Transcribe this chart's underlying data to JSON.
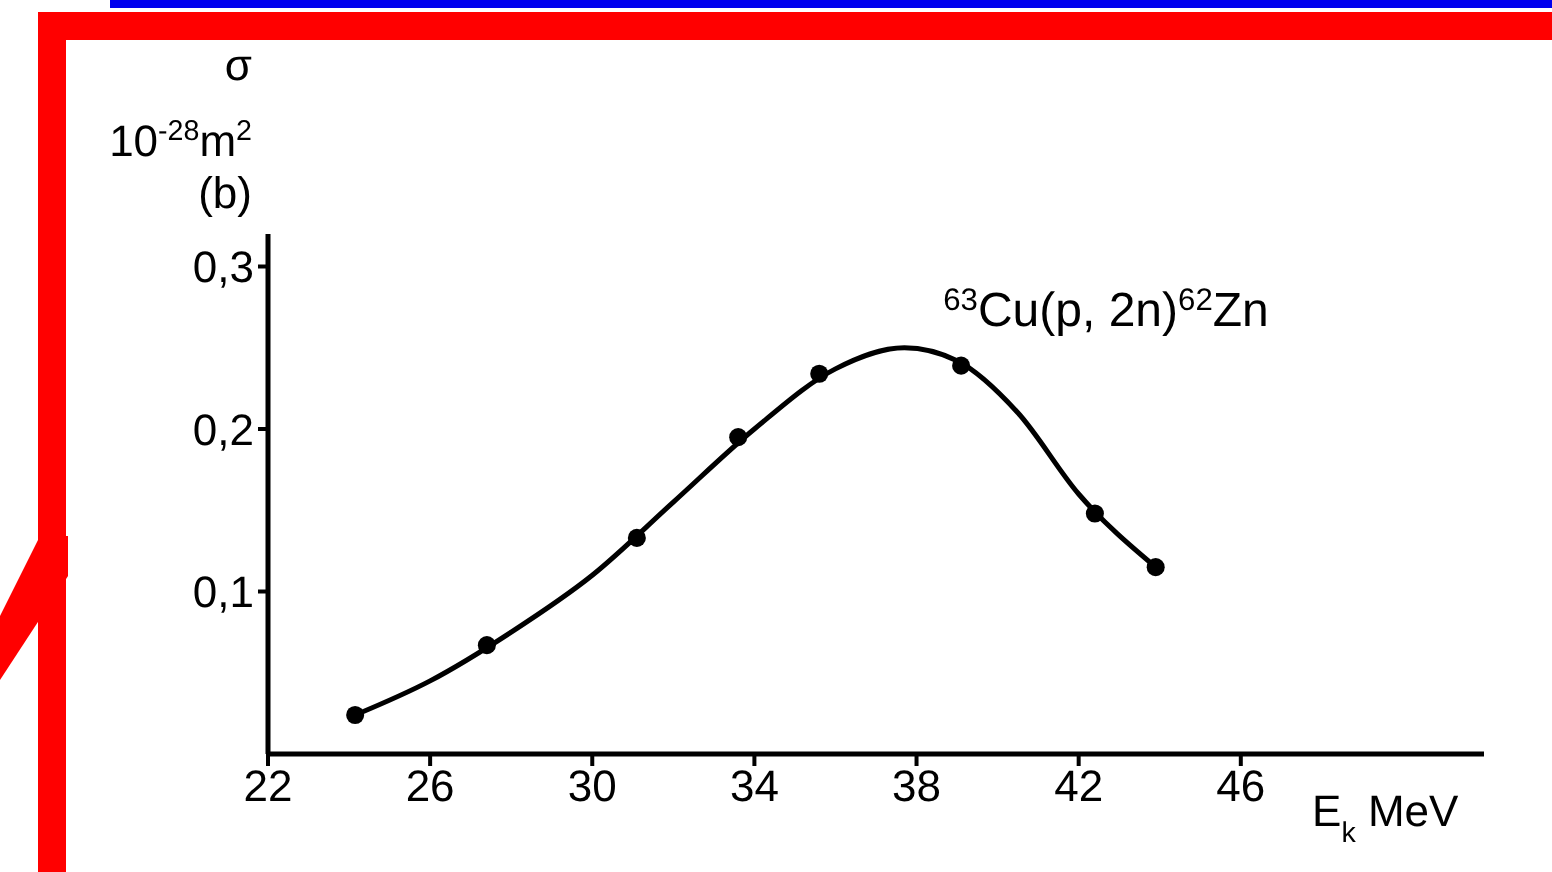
{
  "chart_data": {
    "type": "scatter",
    "annotations": [
      "$^{63}$Cu(p, 2n)$^{62}$Zn"
    ],
    "ylabel": "σ 10$^{-28}$m$^{2}$ (b)",
    "xlabel": "E$_{k}$ MeV",
    "xlim": [
      22,
      52
    ],
    "xticks": [
      22,
      26,
      30,
      34,
      38,
      42,
      46
    ],
    "ylim": [
      0,
      0.32
    ],
    "yticks": [
      {
        "value": 0.1,
        "label": "0,1"
      },
      {
        "value": 0.2,
        "label": "0,2"
      },
      {
        "value": 0.3,
        "label": "0,3"
      }
    ],
    "grid": false,
    "series": [
      {
        "type": "line",
        "color": "#000000",
        "marker": "none",
        "line_style": "solid",
        "x": [
          24.15,
          26,
          28,
          30,
          32,
          34,
          36,
          37.7,
          39,
          40.5,
          42,
          43.9
        ],
        "values": [
          0.024,
          0.045,
          0.075,
          0.11,
          0.155,
          0.2,
          0.237,
          0.25,
          0.242,
          0.21,
          0.16,
          0.115
        ]
      },
      {
        "color": "#000000",
        "marker": "circle",
        "x": [
          24.15,
          27.4,
          31.1,
          33.6,
          35.6,
          39.1,
          42.4,
          43.9
        ],
        "values": [
          0.024,
          0.067,
          0.133,
          0.195,
          0.234,
          0.239,
          0.148,
          0.115
        ]
      }
    ]
  }
}
